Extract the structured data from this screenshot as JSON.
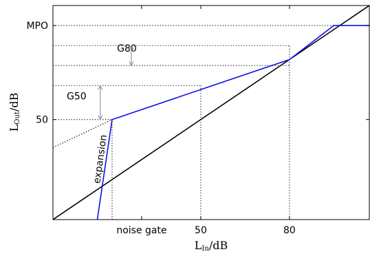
{
  "chart_data": {
    "type": "line",
    "title": "",
    "xlabel": {
      "main": "L",
      "sub": "In",
      "unit": "/dB"
    },
    "ylabel": {
      "main": "L",
      "sub": "Out",
      "unit": "/dB"
    },
    "xlim": [
      0,
      107
    ],
    "ylim": [
      0,
      107
    ],
    "grid": false,
    "x_ticks": [
      {
        "value": 30,
        "label": "noise gate"
      },
      {
        "value": 50,
        "label": "50"
      },
      {
        "value": 80,
        "label": "80"
      }
    ],
    "y_ticks": [
      {
        "value": 50,
        "label": "50"
      },
      {
        "value": 97,
        "label": "MPO"
      }
    ],
    "series": [
      {
        "color": "#000000",
        "style": "solid",
        "x": [
          0,
          107
        ],
        "y": [
          0,
          107
        ]
      },
      {
        "color": "#1010e6",
        "style": "solid",
        "x": [
          15,
          20,
          80,
          95,
          107
        ],
        "y": [
          0,
          50,
          80,
          97,
          97
        ]
      },
      {
        "color": "#000000",
        "style": "dotted",
        "x": [
          0,
          20
        ],
        "y": [
          36,
          50
        ]
      }
    ],
    "reference_lines": [
      {
        "orientation": "h",
        "value": 97,
        "to_x": 107
      },
      {
        "orientation": "h",
        "value": 87,
        "to_x": 80
      },
      {
        "orientation": "h",
        "value": 77,
        "to_x": 80
      },
      {
        "orientation": "h",
        "value": 67,
        "to_x": 50
      },
      {
        "orientation": "h",
        "value": 50,
        "to_x": 20
      },
      {
        "orientation": "v",
        "value": 20,
        "to_y": 50
      },
      {
        "orientation": "v",
        "value": 50,
        "to_y": 67
      },
      {
        "orientation": "v",
        "value": 80,
        "to_y": 87
      }
    ],
    "annotations": [
      {
        "text": "G80",
        "x": 25,
        "y": 84,
        "arrow_from": 77,
        "arrow_to": 87,
        "arrow_x": 26.5
      },
      {
        "text": "G50",
        "x": 8,
        "y": 60,
        "arrow_from": 50,
        "arrow_to": 67,
        "arrow_x": 16
      },
      {
        "text": "expansion",
        "x": 17,
        "y": 30,
        "rotation": -82
      }
    ]
  }
}
